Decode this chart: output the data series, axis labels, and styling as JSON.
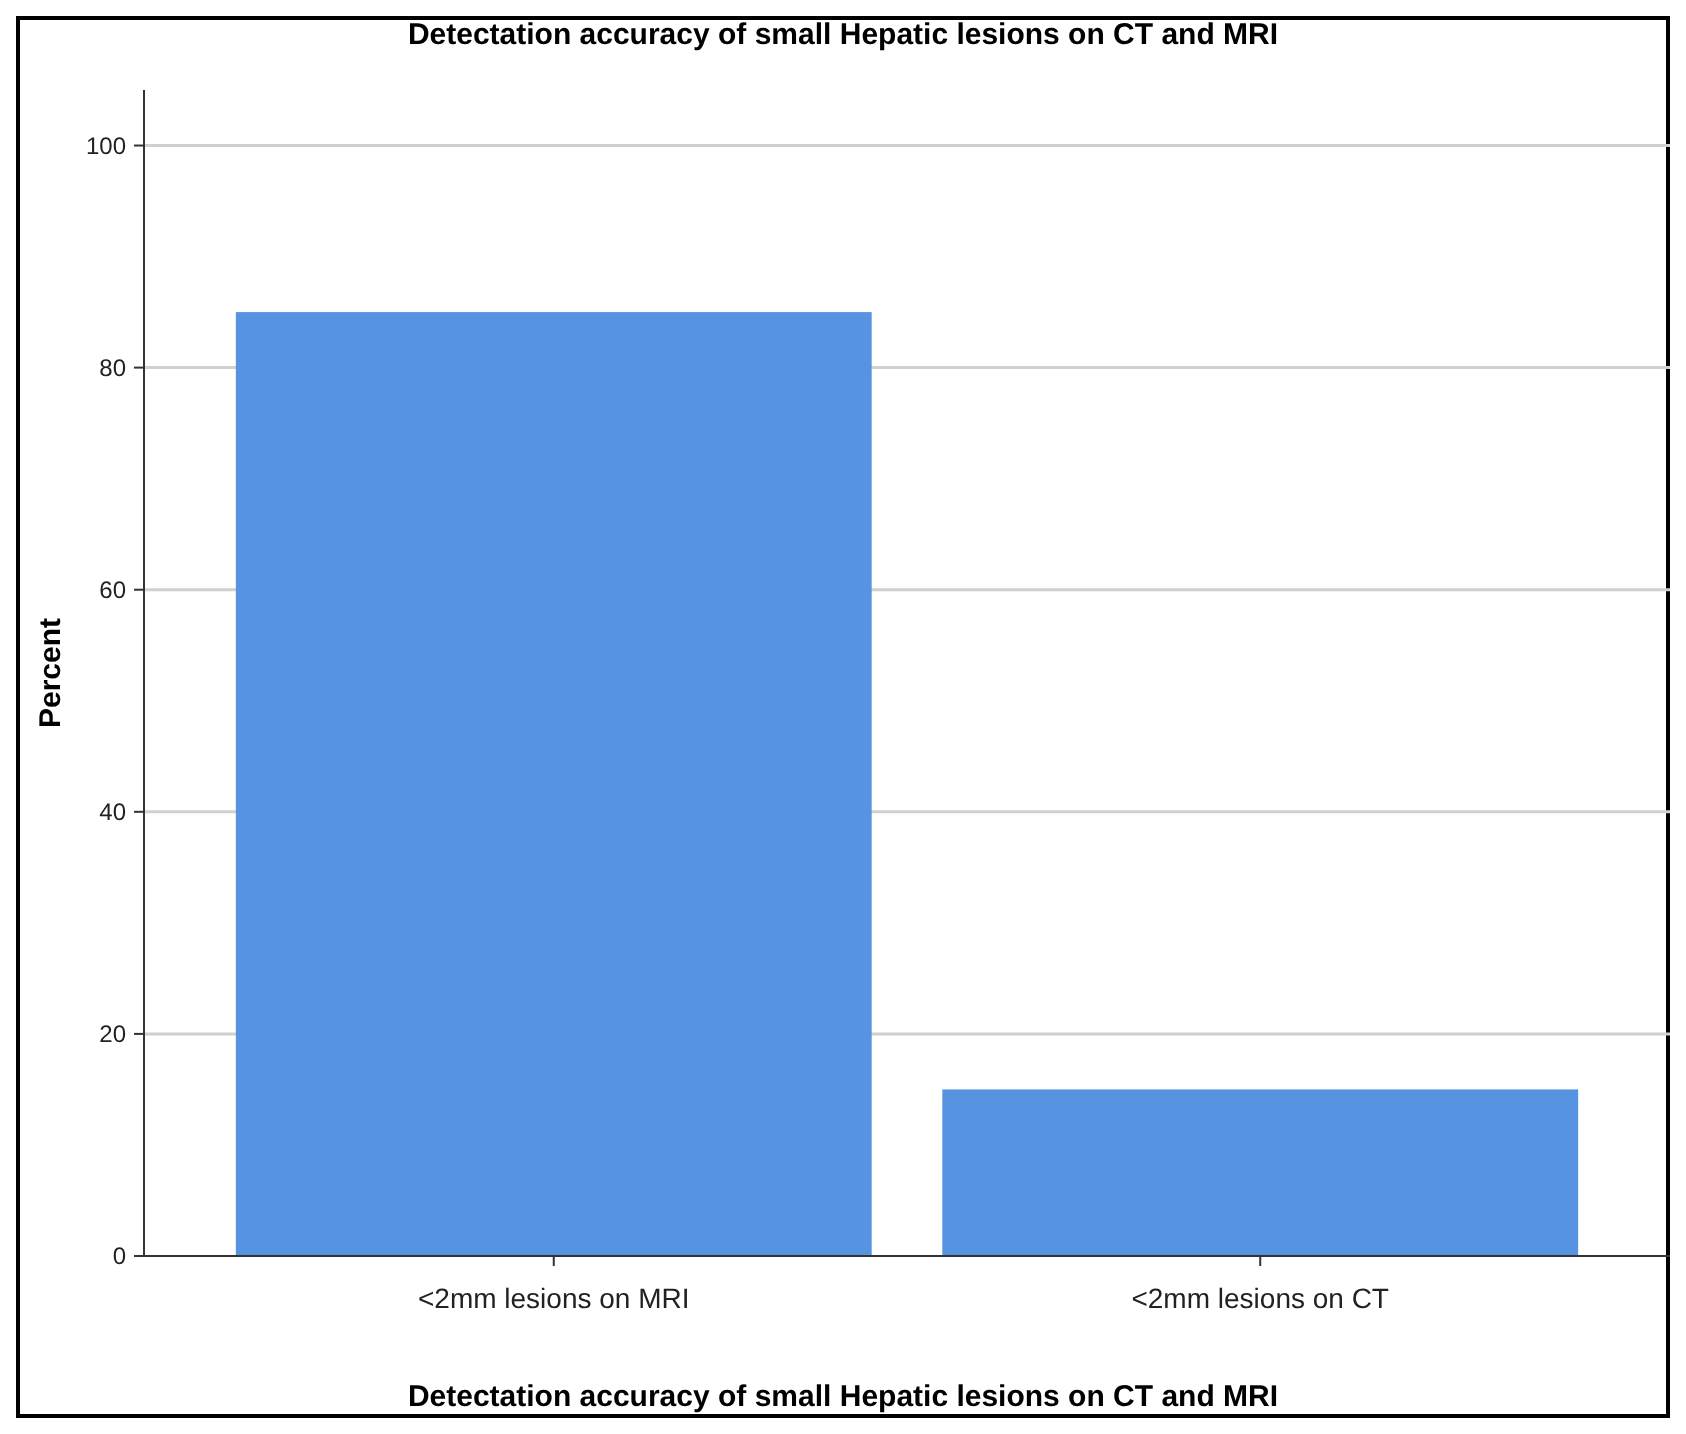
{
  "chart_data": {
    "type": "bar",
    "title": "Detectation accuracy of small Hepatic lesions on CT and MRI",
    "xlabel": "Detectation accuracy of small Hepatic lesions on CT and MRI",
    "ylabel": "Percent",
    "categories": [
      "<2mm lesions on MRI",
      "<2mm lesions on CT"
    ],
    "values": [
      85,
      15
    ],
    "color": "#5694e1",
    "ylim": [
      0,
      105
    ],
    "yticks": [
      0,
      20,
      40,
      60,
      80,
      100
    ],
    "grid": "y"
  }
}
